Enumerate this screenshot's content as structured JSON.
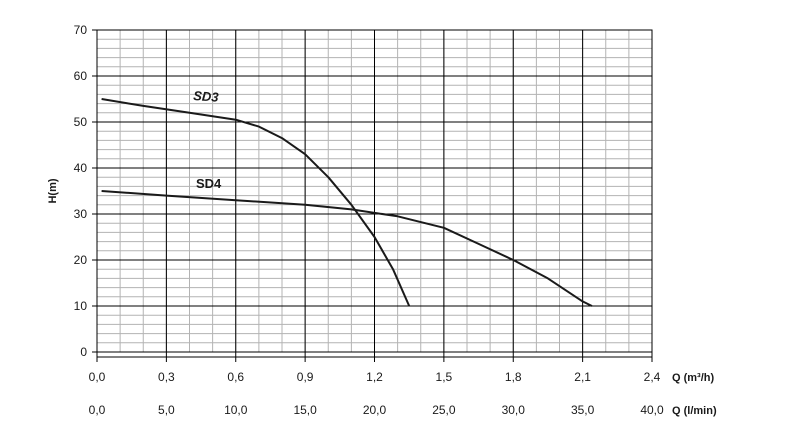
{
  "chart_data": {
    "type": "line",
    "title": "",
    "ylabel": "H(m)",
    "xlabel": "Q (m³/h)",
    "xlabel_secondary": "Q (l/min)",
    "xlim": [
      0,
      2.4
    ],
    "ylim": [
      0,
      70
    ],
    "grid": true,
    "legend": "none",
    "y_ticks": [
      "0",
      "10",
      "20",
      "30",
      "40",
      "50",
      "60",
      "70"
    ],
    "x_ticks": [
      "0,0",
      "0,3",
      "0,6",
      "0,9",
      "1,2",
      "1,5",
      "1,8",
      "2,1",
      "2,4"
    ],
    "x_ticks_secondary": [
      "0,0",
      "5,0",
      "10,0",
      "15,0",
      "20,0",
      "25,0",
      "30,0",
      "35,0",
      "40,0"
    ],
    "series": [
      {
        "name": "SD3",
        "x": [
          0.02,
          0.2,
          0.4,
          0.6,
          0.7,
          0.8,
          0.9,
          1.0,
          1.1,
          1.2,
          1.28,
          1.35
        ],
        "y": [
          55,
          53.5,
          52,
          50.5,
          49,
          46.5,
          43,
          38,
          32,
          25,
          18,
          10
        ]
      },
      {
        "name": "SD4",
        "x": [
          0.02,
          0.3,
          0.6,
          0.9,
          1.1,
          1.3,
          1.5,
          1.65,
          1.8,
          1.95,
          2.1,
          2.14
        ],
        "y": [
          35,
          34,
          33,
          32,
          31,
          29.5,
          27,
          23.5,
          20,
          16,
          11,
          10
        ]
      }
    ]
  }
}
